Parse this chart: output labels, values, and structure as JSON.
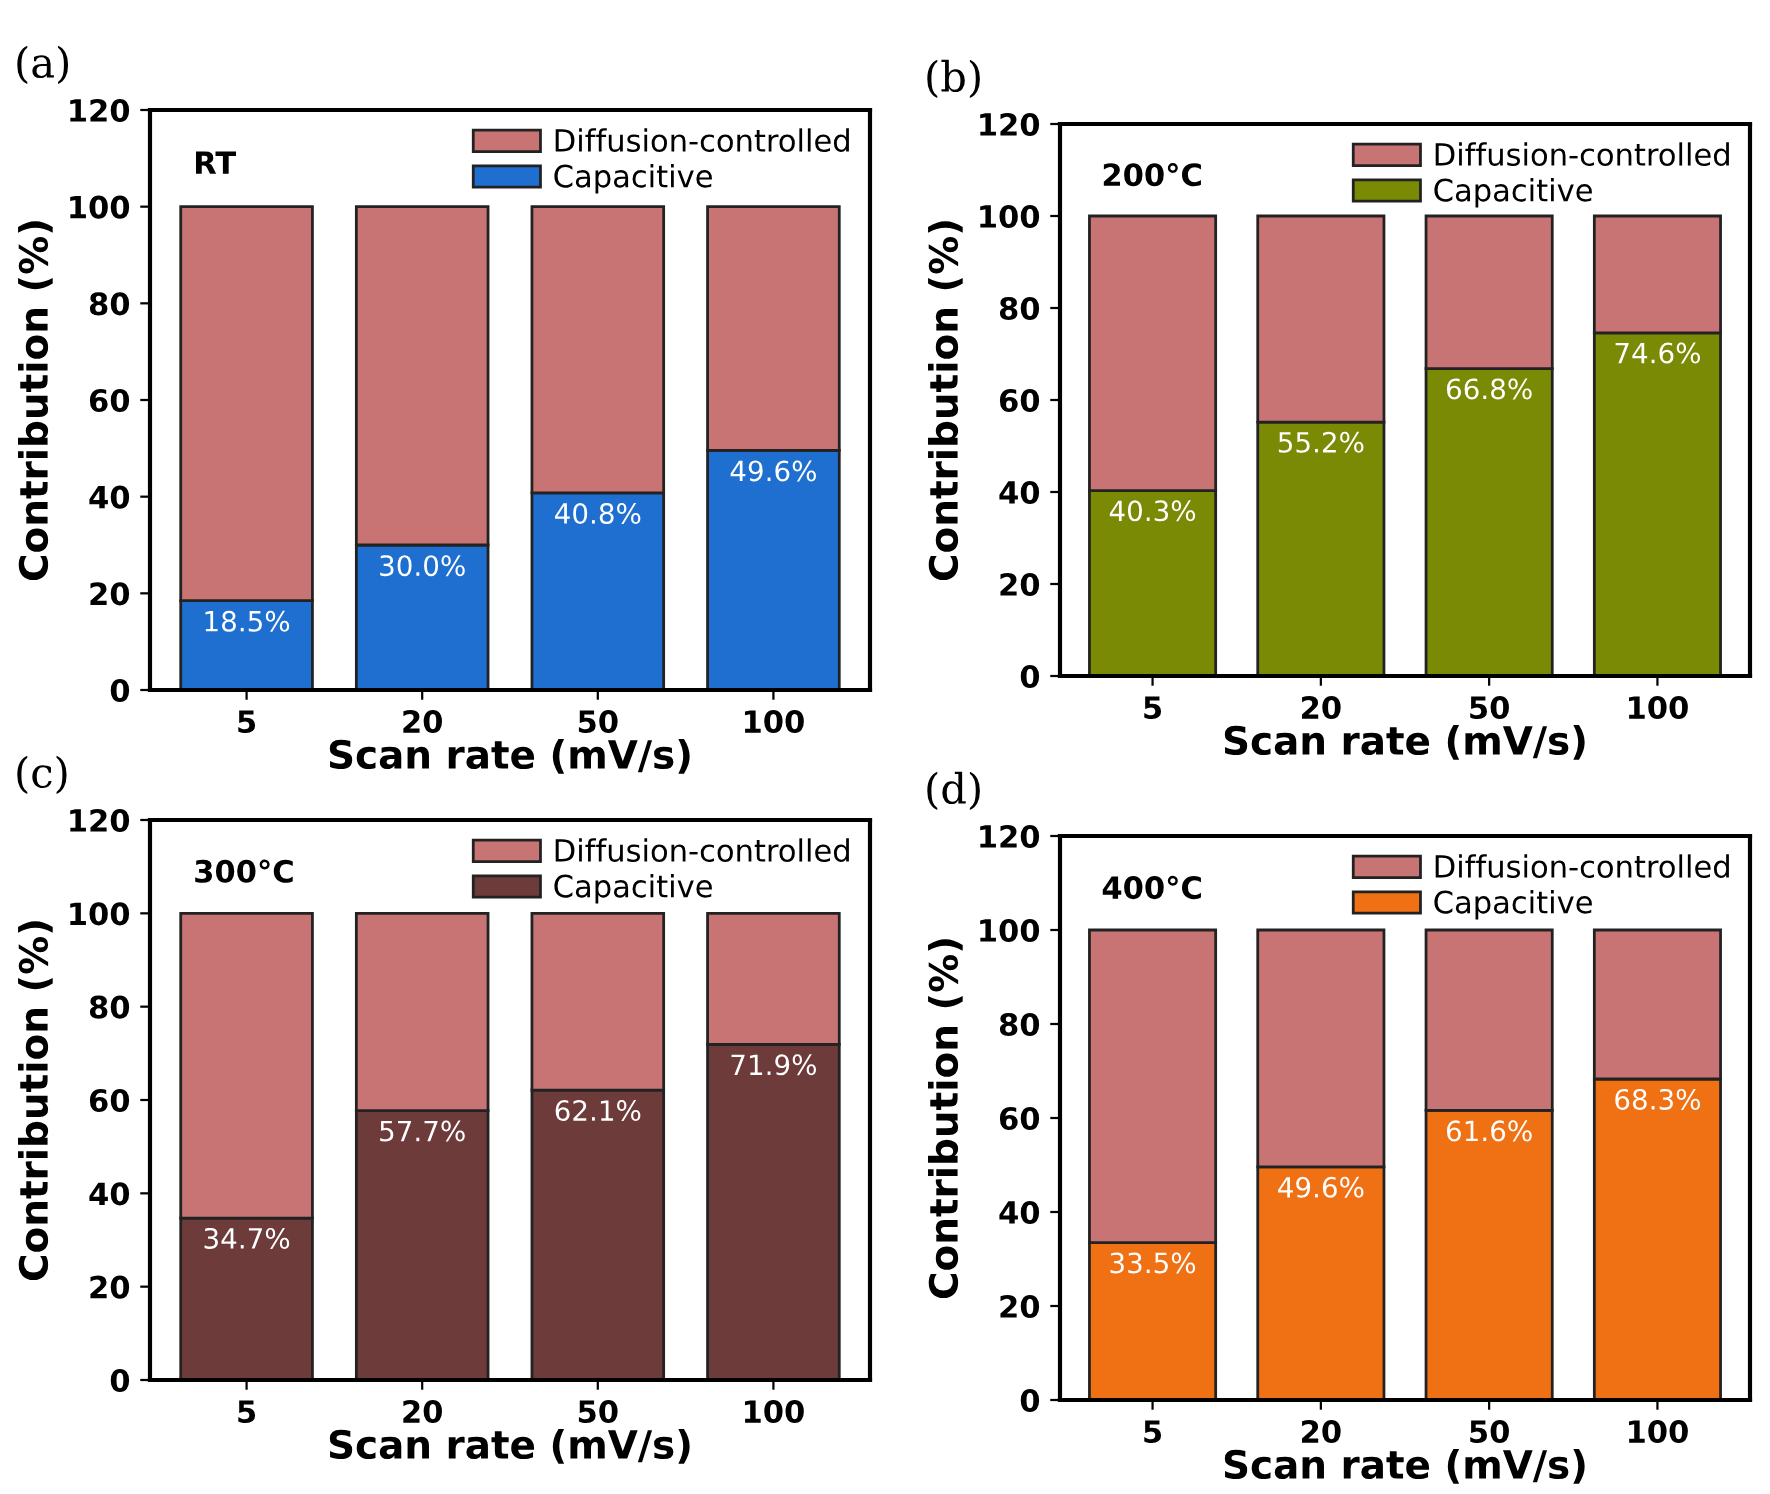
{
  "chart_data": [
    {
      "type": "bar",
      "stacked": true,
      "xlabel": "Scan rate (mV/s)",
      "ylabel": "Contribution (%)",
      "categories": [
        "5",
        "20",
        "50",
        "100"
      ],
      "ylim": [
        0,
        120
      ],
      "yticks": [
        0,
        20,
        40,
        60,
        80,
        100,
        120
      ],
      "legend": "top right",
      "grid": false,
      "annotations": [
        "(a)",
        "RT"
      ],
      "series": [
        {
          "name": "Capacitive",
          "color": "#1f6fd0",
          "values": [
            18.5,
            30.0,
            40.8,
            49.6
          ],
          "value_labels": [
            "18.5%",
            "30.0%",
            "40.8%",
            "49.6%"
          ]
        },
        {
          "name": "Diffusion-controlled",
          "color": "#c97474",
          "values": [
            81.5,
            70.0,
            59.2,
            50.4
          ]
        }
      ]
    },
    {
      "type": "bar",
      "stacked": true,
      "xlabel": "Scan rate (mV/s)",
      "ylabel": "Contribution (%)",
      "categories": [
        "5",
        "20",
        "50",
        "100"
      ],
      "ylim": [
        0,
        120
      ],
      "yticks": [
        0,
        20,
        40,
        60,
        80,
        100,
        120
      ],
      "legend": "top right",
      "grid": false,
      "annotations": [
        "(b)",
        "200°C"
      ],
      "series": [
        {
          "name": "Capacitive",
          "color": "#7a8a05",
          "values": [
            40.3,
            55.2,
            66.8,
            74.6
          ],
          "value_labels": [
            "40.3%",
            "55.2%",
            "66.8%",
            "74.6%"
          ]
        },
        {
          "name": "Diffusion-controlled",
          "color": "#c97474",
          "values": [
            59.7,
            44.8,
            33.2,
            25.4
          ]
        }
      ]
    },
    {
      "type": "bar",
      "stacked": true,
      "xlabel": "Scan rate (mV/s)",
      "ylabel": "Contribution (%)",
      "categories": [
        "5",
        "20",
        "50",
        "100"
      ],
      "ylim": [
        0,
        120
      ],
      "yticks": [
        0,
        20,
        40,
        60,
        80,
        100,
        120
      ],
      "legend": "top right",
      "grid": false,
      "annotations": [
        "(c)",
        "300°C"
      ],
      "series": [
        {
          "name": "Capacitive",
          "color": "#6e3b3b",
          "values": [
            34.7,
            57.7,
            62.1,
            71.9
          ],
          "value_labels": [
            "34.7%",
            "57.7%",
            "62.1%",
            "71.9%"
          ]
        },
        {
          "name": "Diffusion-controlled",
          "color": "#c97474",
          "values": [
            65.3,
            42.3,
            37.9,
            28.1
          ]
        }
      ]
    },
    {
      "type": "bar",
      "stacked": true,
      "xlabel": "Scan rate (mV/s)",
      "ylabel": "Contribution (%)",
      "categories": [
        "5",
        "20",
        "50",
        "100"
      ],
      "ylim": [
        0,
        120
      ],
      "yticks": [
        0,
        20,
        40,
        60,
        80,
        100,
        120
      ],
      "legend": "top right",
      "grid": false,
      "annotations": [
        "(d)",
        "400°C"
      ],
      "series": [
        {
          "name": "Capacitive",
          "color": "#f07014",
          "values": [
            33.5,
            49.6,
            61.6,
            68.3
          ],
          "value_labels": [
            "33.5%",
            "49.6%",
            "61.6%",
            "68.3%"
          ]
        },
        {
          "name": "Diffusion-controlled",
          "color": "#c97474",
          "values": [
            66.5,
            50.4,
            38.4,
            31.7
          ]
        }
      ]
    }
  ]
}
